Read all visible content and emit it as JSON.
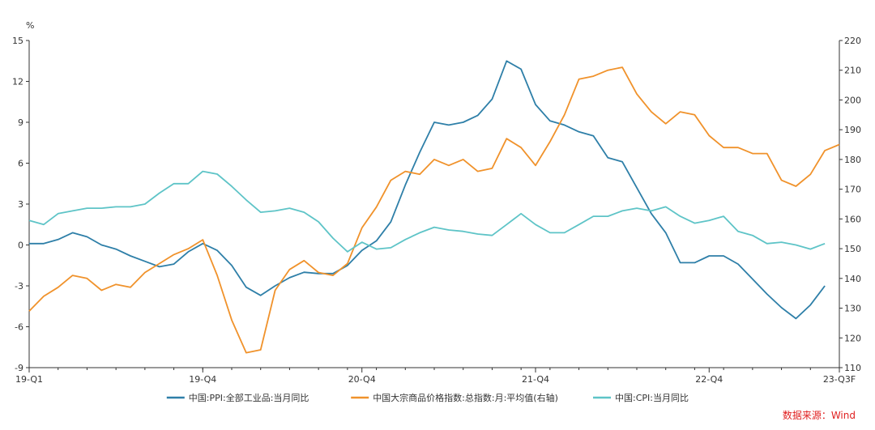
{
  "chart_data": {
    "type": "line",
    "y_unit_label": "%",
    "x_tick_labels": [
      "19-Q1",
      "19-Q4",
      "20-Q4",
      "21-Q4",
      "22-Q4",
      "23-Q3F"
    ],
    "x_tick_index": [
      0,
      12,
      23,
      35,
      47,
      56
    ],
    "left_axis": {
      "min": -9,
      "max": 15,
      "ticks": [
        -9,
        -6,
        -3,
        0,
        3,
        6,
        9,
        12,
        15
      ]
    },
    "right_axis": {
      "min": 110,
      "max": 220,
      "ticks": [
        110,
        120,
        130,
        140,
        150,
        160,
        170,
        180,
        190,
        200,
        210,
        220
      ]
    },
    "legend_position": "bottom-center",
    "grid": false,
    "series": [
      {
        "name": "中国:PPI:全部工业品:当月同比",
        "axis": "left",
        "color": "#2e7fa8",
        "values": [
          0.1,
          0.1,
          0.4,
          0.9,
          0.6,
          0.0,
          -0.3,
          -0.8,
          -1.2,
          -1.6,
          -1.4,
          -0.5,
          0.1,
          -0.4,
          -1.5,
          -3.1,
          -3.7,
          -3.0,
          -2.4,
          -2.0,
          -2.1,
          -2.1,
          -1.5,
          -0.4,
          0.3,
          1.7,
          4.4,
          6.8,
          9.0,
          8.8,
          9.0,
          9.5,
          10.7,
          13.5,
          12.9,
          10.3,
          9.1,
          8.8,
          8.3,
          8.0,
          6.4,
          6.1,
          4.2,
          2.3,
          0.9,
          -1.3,
          -1.3,
          -0.8,
          -0.8,
          -1.4,
          -2.5,
          -3.6,
          -4.6,
          -5.4,
          -4.4,
          -3.0
        ]
      },
      {
        "name": "中国大宗商品价格指数:总指数:月:平均值(右轴)",
        "axis": "right",
        "color": "#f0922b",
        "values": [
          129,
          134,
          137,
          141,
          140,
          136,
          138,
          137,
          142,
          145,
          148,
          150,
          153,
          141,
          126,
          115,
          116,
          136,
          143,
          146,
          142,
          141,
          145,
          157,
          164,
          173,
          176,
          175,
          180,
          178,
          180,
          176,
          177,
          187,
          184,
          178,
          186,
          195,
          207,
          208,
          210,
          211,
          202,
          196,
          192,
          196,
          195,
          188,
          184,
          184,
          182,
          182,
          173,
          171,
          175,
          183,
          185
        ]
      },
      {
        "name": "中国:CPI:当月同比",
        "axis": "left",
        "color": "#5ec4c7",
        "values": [
          1.8,
          1.5,
          2.3,
          2.5,
          2.7,
          2.7,
          2.8,
          2.8,
          3.0,
          3.8,
          4.5,
          4.5,
          5.4,
          5.2,
          4.3,
          3.3,
          2.4,
          2.5,
          2.7,
          2.4,
          1.7,
          0.5,
          -0.5,
          0.2,
          -0.3,
          -0.2,
          0.4,
          0.9,
          1.3,
          1.1,
          1.0,
          0.8,
          0.7,
          1.5,
          2.3,
          1.5,
          0.9,
          0.9,
          1.5,
          2.1,
          2.1,
          2.5,
          2.7,
          2.5,
          2.8,
          2.1,
          1.6,
          1.8,
          2.1,
          1.0,
          0.7,
          0.1,
          0.2,
          0.0,
          -0.3,
          0.1
        ]
      }
    ]
  },
  "source_note": "数据来源：Wind"
}
